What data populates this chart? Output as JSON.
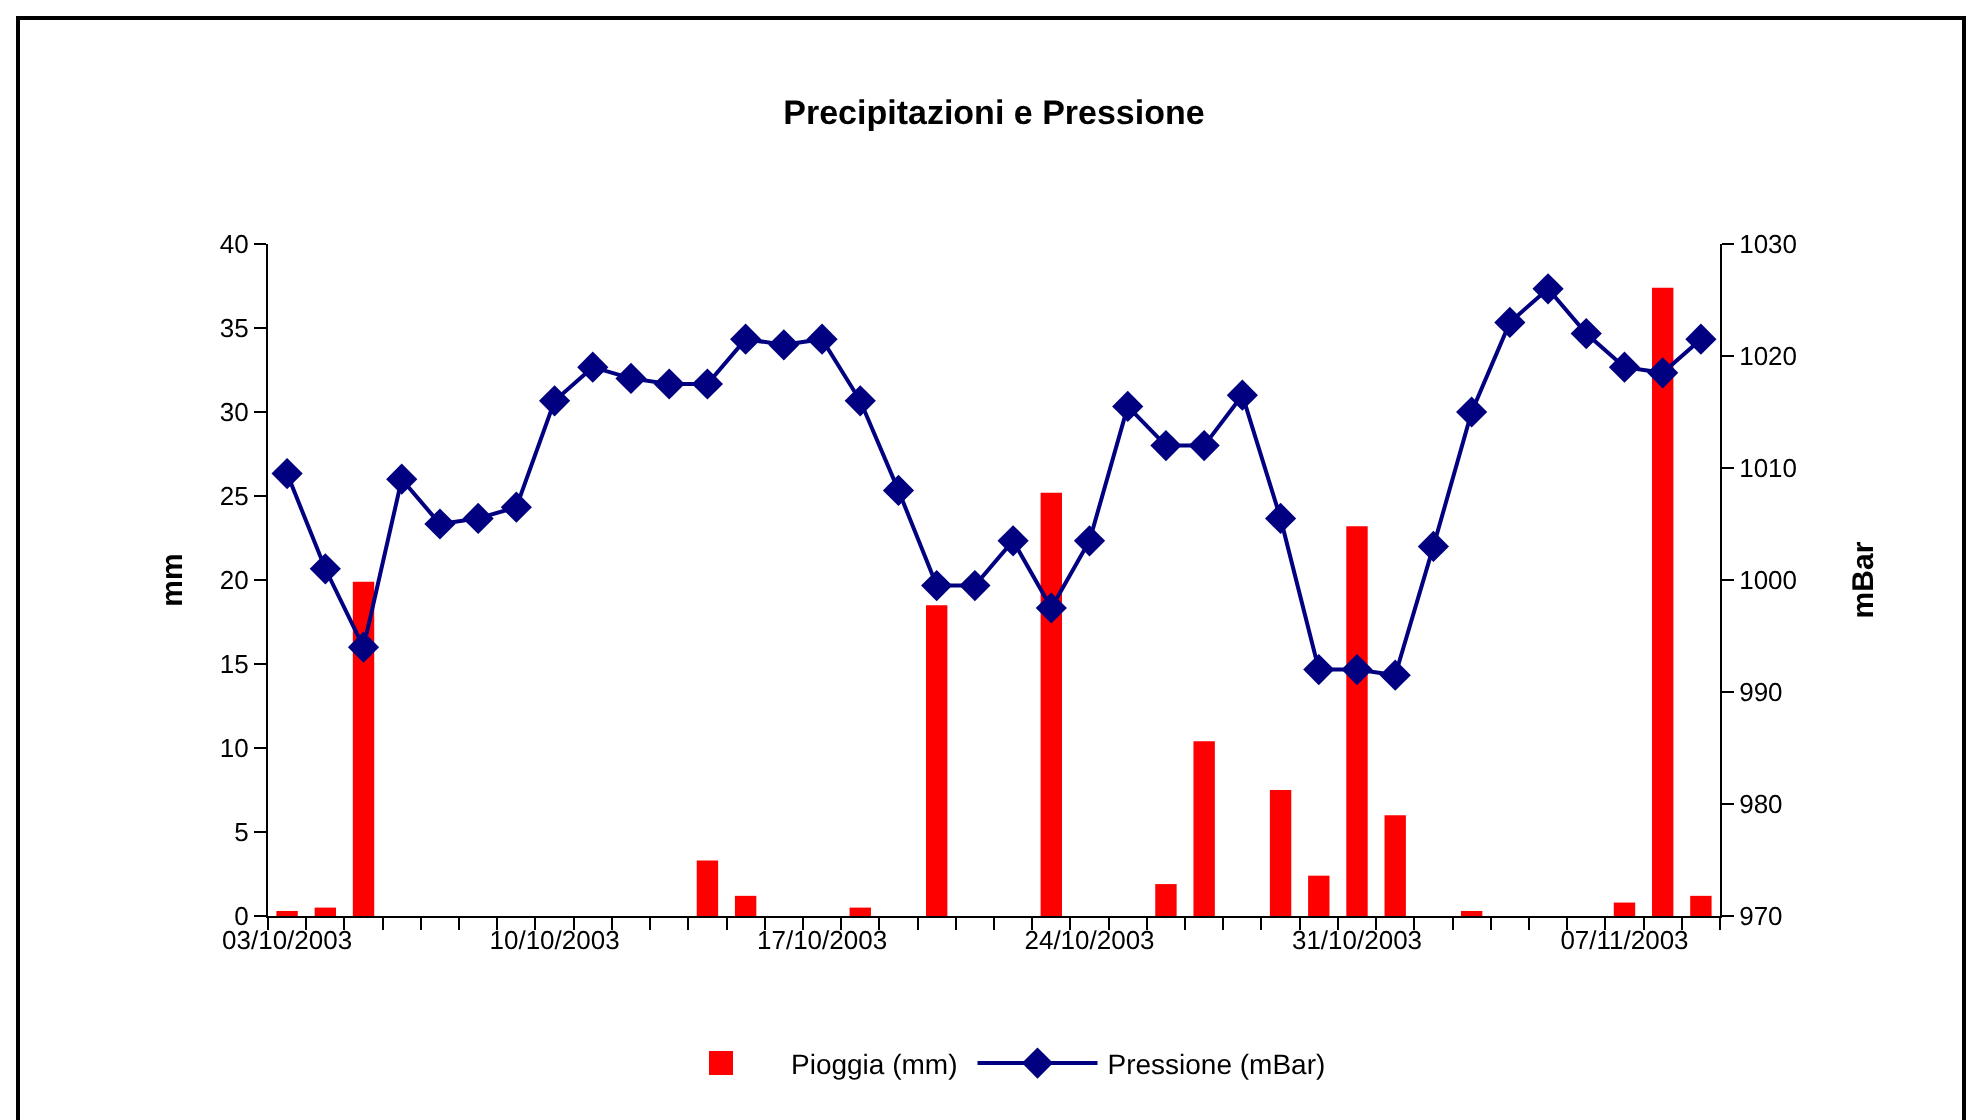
{
  "chart_data": {
    "type": "bar",
    "title": "Precipitazioni e Pressione",
    "ylabel": "mm",
    "y2label": "mBar",
    "x": [
      "2003-10-03",
      "2003-10-04",
      "2003-10-05",
      "2003-10-06",
      "2003-10-07",
      "2003-10-08",
      "2003-10-09",
      "2003-10-10",
      "2003-10-11",
      "2003-10-12",
      "2003-10-13",
      "2003-10-14",
      "2003-10-15",
      "2003-10-16",
      "2003-10-17",
      "2003-10-18",
      "2003-10-19",
      "2003-10-20",
      "2003-10-21",
      "2003-10-22",
      "2003-10-23",
      "2003-10-24",
      "2003-10-25",
      "2003-10-26",
      "2003-10-27",
      "2003-10-28",
      "2003-10-29",
      "2003-10-30",
      "2003-10-31",
      "2003-11-01",
      "2003-11-02",
      "2003-11-03",
      "2003-11-04",
      "2003-11-05",
      "2003-11-06",
      "2003-11-07",
      "2003-11-08",
      "2003-11-09"
    ],
    "xlim": [
      "2003-10-02T12:00",
      "2003-11-09T12:00"
    ],
    "xticks": [
      {
        "value": "2003-10-02T12:00",
        "label": null
      },
      {
        "value": "2003-10-03",
        "label": "03/10/2003"
      },
      {
        "value": "2003-10-03T12:00",
        "label": null
      },
      {
        "value": "2003-10-04T12:00",
        "label": null
      },
      {
        "value": "2003-10-05T12:00",
        "label": null
      },
      {
        "value": "2003-10-06T12:00",
        "label": null
      },
      {
        "value": "2003-10-07T12:00",
        "label": null
      },
      {
        "value": "2003-10-08T12:00",
        "label": null
      },
      {
        "value": "2003-10-09T12:00",
        "label": null
      },
      {
        "value": "2003-10-10",
        "label": "10/10/2003"
      },
      {
        "value": "2003-10-10T12:00",
        "label": null
      },
      {
        "value": "2003-10-11T12:00",
        "label": null
      },
      {
        "value": "2003-10-12T12:00",
        "label": null
      },
      {
        "value": "2003-10-13T12:00",
        "label": null
      },
      {
        "value": "2003-10-14T12:00",
        "label": null
      },
      {
        "value": "2003-10-15T12:00",
        "label": null
      },
      {
        "value": "2003-10-16T12:00",
        "label": null
      },
      {
        "value": "2003-10-17",
        "label": "17/10/2003"
      },
      {
        "value": "2003-10-17T12:00",
        "label": null
      },
      {
        "value": "2003-10-18T12:00",
        "label": null
      },
      {
        "value": "2003-10-19T12:00",
        "label": null
      },
      {
        "value": "2003-10-20T12:00",
        "label": null
      },
      {
        "value": "2003-10-21T12:00",
        "label": null
      },
      {
        "value": "2003-10-22T12:00",
        "label": null
      },
      {
        "value": "2003-10-23T12:00",
        "label": null
      },
      {
        "value": "2003-10-24",
        "label": "24/10/2003"
      },
      {
        "value": "2003-10-24T12:00",
        "label": null
      },
      {
        "value": "2003-10-25T12:00",
        "label": null
      },
      {
        "value": "2003-10-26T12:00",
        "label": null
      },
      {
        "value": "2003-10-27T12:00",
        "label": null
      },
      {
        "value": "2003-10-28T12:00",
        "label": null
      },
      {
        "value": "2003-10-29T12:00",
        "label": null
      },
      {
        "value": "2003-10-30T12:00",
        "label": null
      },
      {
        "value": "2003-10-31",
        "label": "31/10/2003"
      },
      {
        "value": "2003-10-31T12:00",
        "label": null
      },
      {
        "value": "2003-11-01T12:00",
        "label": null
      },
      {
        "value": "2003-11-02T12:00",
        "label": null
      },
      {
        "value": "2003-11-03T12:00",
        "label": null
      },
      {
        "value": "2003-11-04T12:00",
        "label": null
      },
      {
        "value": "2003-11-05T12:00",
        "label": null
      },
      {
        "value": "2003-11-06T12:00",
        "label": null
      },
      {
        "value": "2003-11-07",
        "label": "07/11/2003"
      },
      {
        "value": "2003-11-07T12:00",
        "label": null
      },
      {
        "value": "2003-11-08T12:00",
        "label": null
      },
      {
        "value": "2003-11-09T12:00",
        "label": null
      }
    ],
    "ylim": [
      0,
      40
    ],
    "yticks": [
      0,
      5,
      10,
      15,
      20,
      25,
      30,
      35,
      40
    ],
    "y2lim": [
      970,
      1030
    ],
    "y2ticks": [
      970,
      980,
      990,
      1000,
      1010,
      1020,
      1030
    ],
    "series": [
      {
        "name": "Pioggia (mm)",
        "color": "#ff0000",
        "values": [
          0.3,
          0.5,
          19.9,
          0,
          0,
          0,
          0,
          0,
          0,
          0,
          0,
          3.3,
          1.2,
          0,
          0,
          0.5,
          0,
          18.5,
          0,
          0,
          25.2,
          0,
          0,
          1.9,
          10.4,
          0,
          7.5,
          2.4,
          23.2,
          6.0,
          0,
          0.3,
          0,
          0,
          0,
          0.8,
          37.4,
          1.2
        ]
      },
      {
        "name": "Pressione (mBar)",
        "type": "line",
        "axis": "y2",
        "color": "#000080",
        "marker": "diamond",
        "values": [
          1009.5,
          1001,
          994,
          1009,
          1005,
          1005.5,
          1006.5,
          1016,
          1019,
          1018,
          1017.5,
          1017.5,
          1021.5,
          1021,
          1021.5,
          1016,
          1008,
          999.5,
          999.5,
          1003.5,
          997.5,
          1003.5,
          1015.5,
          1012,
          1012,
          1016.5,
          1005.5,
          992,
          992,
          991.5,
          1003,
          1015,
          1023,
          1026,
          1022,
          1019,
          1018.5,
          1021.5
        ]
      }
    ],
    "legend": "bottom"
  }
}
